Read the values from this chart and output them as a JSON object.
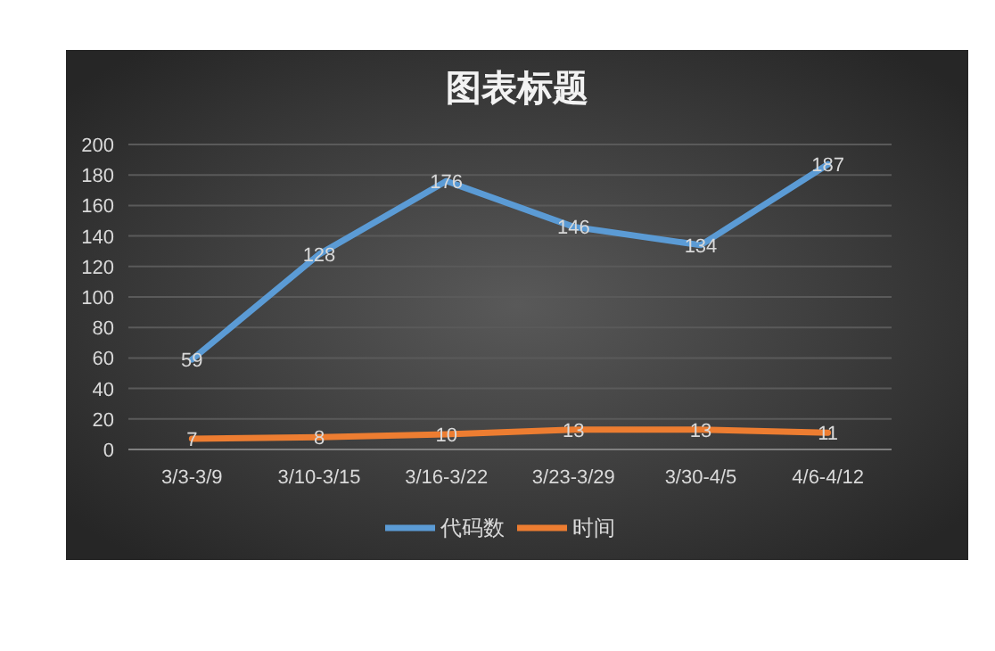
{
  "chart_data": {
    "type": "line",
    "title": "图表标题",
    "categories": [
      "3/3-3/9",
      "3/10-3/15",
      "3/16-3/22",
      "3/23-3/29",
      "3/30-4/5",
      "4/6-4/12"
    ],
    "series": [
      {
        "name": "代码数",
        "color": "#5b9bd5",
        "values": [
          59,
          128,
          176,
          146,
          134,
          187
        ]
      },
      {
        "name": "时间",
        "color": "#ed7d31",
        "values": [
          7,
          8,
          10,
          13,
          13,
          11
        ]
      }
    ],
    "ylim": [
      0,
      200
    ],
    "yticks": [
      0,
      20,
      40,
      60,
      80,
      100,
      120,
      140,
      160,
      180,
      200
    ],
    "grid": "y",
    "legend": "bottom",
    "data_labels": true,
    "marker": "none",
    "line_style": "solid"
  }
}
